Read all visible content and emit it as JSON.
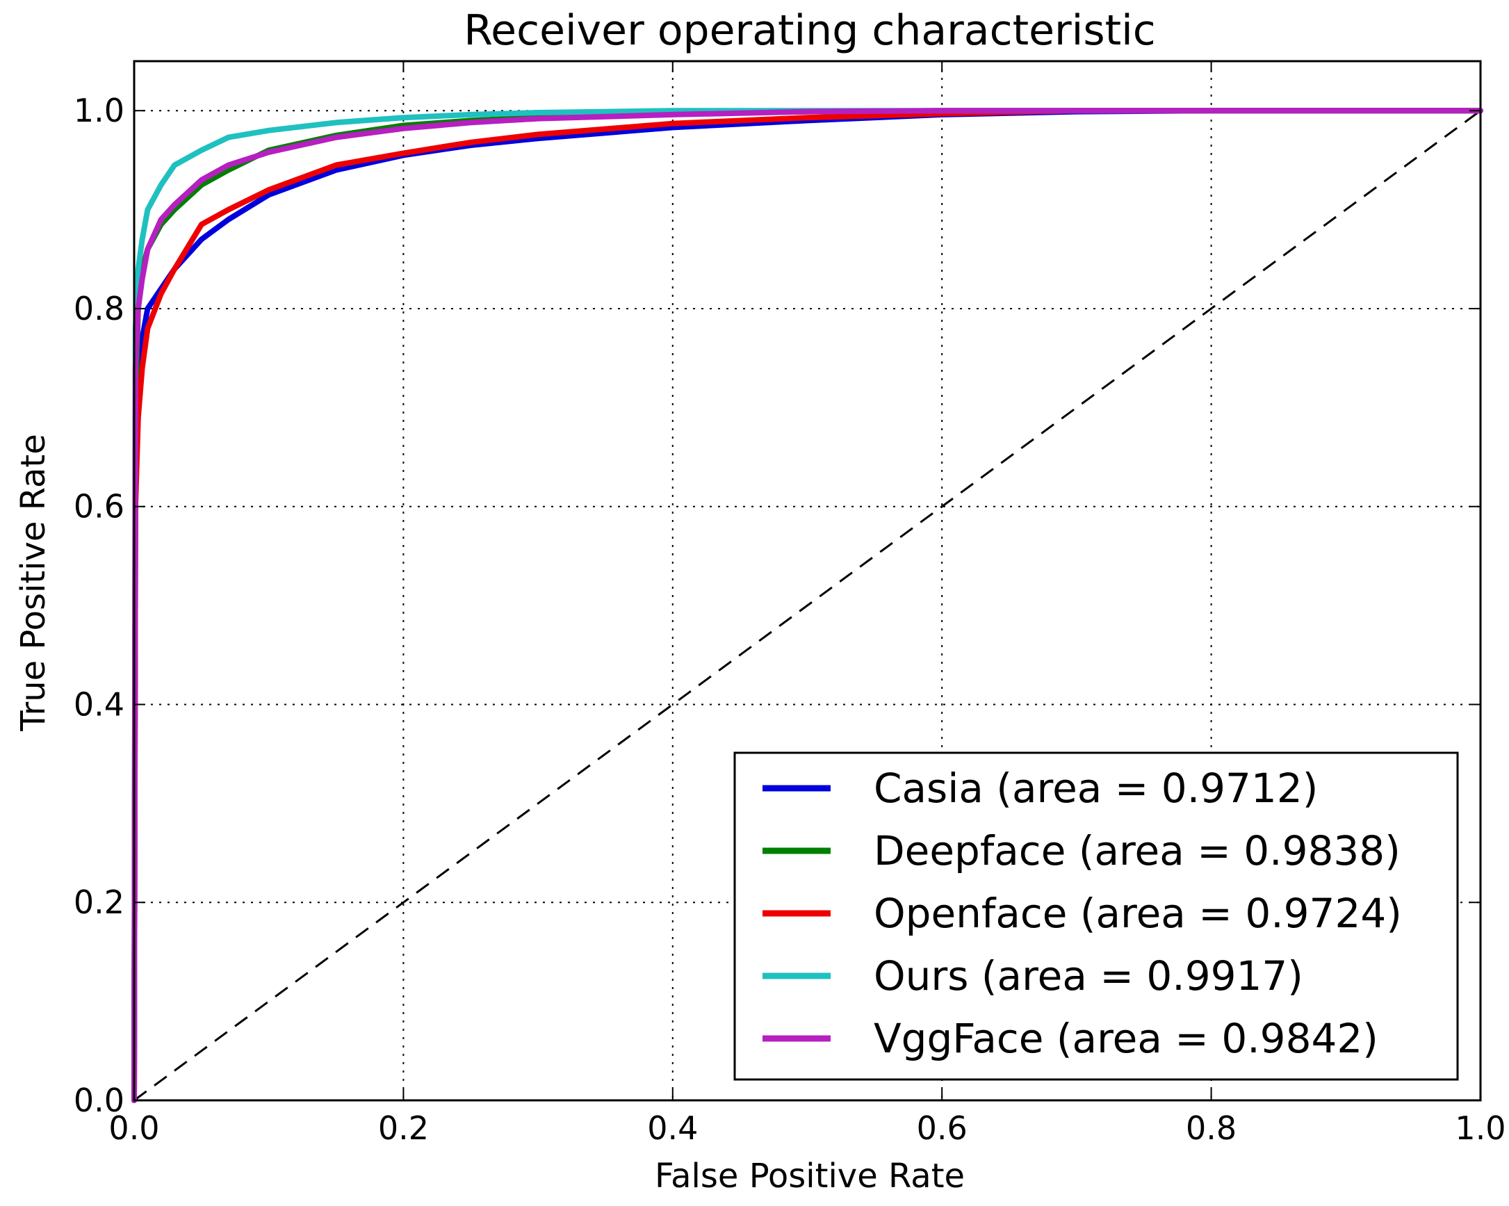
{
  "chart_data": {
    "type": "line",
    "title": "Receiver operating characteristic",
    "xlabel": "False Positive Rate",
    "ylabel": "True Positive Rate",
    "xlim": [
      0.0,
      1.0
    ],
    "ylim": [
      0.0,
      1.05
    ],
    "grid": true,
    "legend_position": "lower-right",
    "x_ticks": [
      "0.0",
      "0.2",
      "0.4",
      "0.6",
      "0.8",
      "1.0"
    ],
    "y_ticks": [
      "0.0",
      "0.2",
      "0.4",
      "0.6",
      "0.8",
      "1.0"
    ],
    "x_tick_values": [
      0.0,
      0.2,
      0.4,
      0.6,
      0.8,
      1.0
    ],
    "y_tick_values": [
      0.0,
      0.2,
      0.4,
      0.6,
      0.8,
      1.0
    ],
    "diagonal": {
      "x": [
        0.0,
        1.0
      ],
      "y": [
        0.0,
        1.0
      ],
      "color": "#000000"
    },
    "series": [
      {
        "name": "Casia (area = 0.9712)",
        "color": "#0000dd",
        "x": [
          0,
          0.001,
          0.003,
          0.006,
          0.01,
          0.02,
          0.03,
          0.05,
          0.07,
          0.1,
          0.15,
          0.2,
          0.25,
          0.3,
          0.4,
          0.5,
          0.6,
          0.7,
          0.8,
          0.9,
          1.0
        ],
        "y": [
          0,
          0.62,
          0.72,
          0.77,
          0.8,
          0.82,
          0.84,
          0.87,
          0.89,
          0.915,
          0.94,
          0.955,
          0.965,
          0.972,
          0.983,
          0.99,
          0.996,
          0.999,
          1.0,
          1.0,
          1.0
        ]
      },
      {
        "name": "Deepface (area = 0.9838)",
        "color": "#007f00",
        "x": [
          0,
          0.001,
          0.003,
          0.006,
          0.01,
          0.02,
          0.03,
          0.05,
          0.07,
          0.1,
          0.15,
          0.2,
          0.25,
          0.3,
          0.4,
          0.5,
          0.6,
          0.7,
          0.8,
          0.9,
          1.0
        ],
        "y": [
          0,
          0.7,
          0.8,
          0.84,
          0.86,
          0.885,
          0.9,
          0.925,
          0.94,
          0.96,
          0.975,
          0.985,
          0.99,
          0.993,
          0.997,
          0.999,
          1.0,
          1.0,
          1.0,
          1.0,
          1.0
        ]
      },
      {
        "name": "Openface (area = 0.9724)",
        "color": "#ee0000",
        "x": [
          0,
          0.001,
          0.003,
          0.006,
          0.01,
          0.02,
          0.03,
          0.05,
          0.07,
          0.1,
          0.15,
          0.2,
          0.25,
          0.3,
          0.4,
          0.5,
          0.6,
          0.7,
          0.8,
          0.9,
          1.0
        ],
        "y": [
          0,
          0.6,
          0.69,
          0.74,
          0.78,
          0.815,
          0.84,
          0.885,
          0.9,
          0.92,
          0.945,
          0.957,
          0.968,
          0.976,
          0.987,
          0.993,
          0.997,
          1.0,
          1.0,
          1.0,
          1.0
        ]
      },
      {
        "name": "Ours (area = 0.9917)",
        "color": "#1fc0c0",
        "x": [
          0,
          0.001,
          0.003,
          0.006,
          0.01,
          0.02,
          0.03,
          0.05,
          0.07,
          0.1,
          0.15,
          0.2,
          0.25,
          0.3,
          0.4,
          0.5,
          0.6,
          0.7,
          0.8,
          0.9,
          1.0
        ],
        "y": [
          0,
          0.78,
          0.84,
          0.87,
          0.9,
          0.925,
          0.945,
          0.96,
          0.973,
          0.98,
          0.988,
          0.993,
          0.996,
          0.998,
          1.0,
          1.0,
          1.0,
          1.0,
          1.0,
          1.0,
          1.0
        ]
      },
      {
        "name": "VggFace (area = 0.9842)",
        "color": "#b61fc0",
        "x": [
          0,
          0.001,
          0.003,
          0.006,
          0.01,
          0.02,
          0.03,
          0.05,
          0.07,
          0.1,
          0.15,
          0.2,
          0.25,
          0.3,
          0.4,
          0.5,
          0.6,
          0.7,
          0.8,
          0.9,
          1.0
        ],
        "y": [
          0,
          0.74,
          0.8,
          0.83,
          0.86,
          0.89,
          0.905,
          0.93,
          0.945,
          0.958,
          0.973,
          0.982,
          0.988,
          0.992,
          0.996,
          0.999,
          1.0,
          1.0,
          1.0,
          1.0,
          1.0
        ]
      }
    ]
  }
}
